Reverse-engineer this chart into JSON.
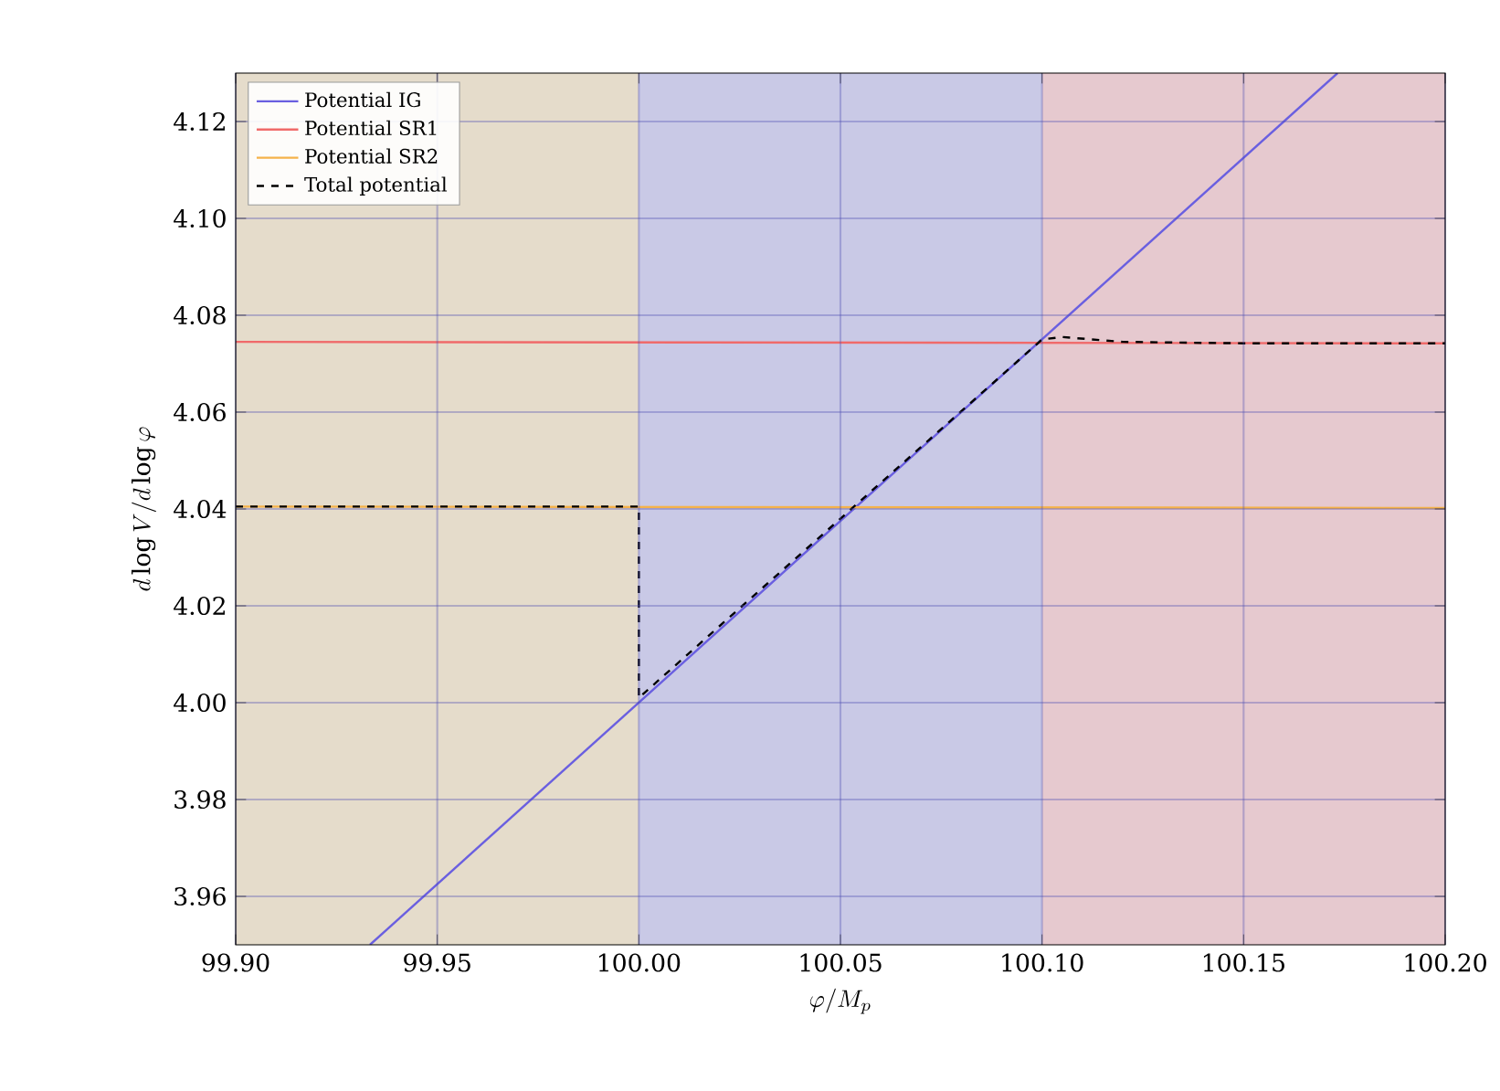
{
  "chart_data": {
    "type": "line",
    "xlabel": "\\varphi/M_p",
    "ylabel": "d\\log V/d\\log\\varphi",
    "xlim": [
      99.9,
      100.2
    ],
    "ylim": [
      3.95,
      4.13
    ],
    "xticks": [
      {
        "value": 99.9,
        "label": "99.90"
      },
      {
        "value": 99.95,
        "label": "99.95"
      },
      {
        "value": 100.0,
        "label": "100.00"
      },
      {
        "value": 100.05,
        "label": "100.05"
      },
      {
        "value": 100.1,
        "label": "100.10"
      },
      {
        "value": 100.15,
        "label": "100.15"
      },
      {
        "value": 100.2,
        "label": "100.20"
      }
    ],
    "yticks": [
      3.96,
      3.98,
      {
        "value": 4.0,
        "label": "4.00"
      },
      4.02,
      4.04,
      4.06,
      4.08,
      {
        "value": 4.1,
        "label": "4.10"
      },
      4.12
    ],
    "grid": true,
    "legend": "top left",
    "bands": [
      {
        "axis": "x",
        "from": 99.9,
        "to": 100.0,
        "color": "#e5dccb"
      },
      {
        "axis": "x",
        "from": 100.0,
        "to": 100.1,
        "color": "#c9c9e6"
      },
      {
        "axis": "x",
        "from": 100.1,
        "to": 100.2,
        "color": "#e6c9cf"
      }
    ],
    "series": [
      {
        "name": "Potential IG",
        "color": "#6a5fe0",
        "line_style": "solid",
        "x": [
          99.9333,
          100.1733
        ],
        "values": [
          3.95,
          4.13
        ]
      },
      {
        "name": "Potential SR1",
        "color": "#f06a6a",
        "line_style": "solid",
        "x": [
          99.9,
          100.2
        ],
        "values": [
          4.0745,
          4.0742
        ]
      },
      {
        "name": "Potential SR2",
        "color": "#f5b24a",
        "line_style": "solid",
        "x": [
          99.9,
          100.2
        ],
        "values": [
          4.0405,
          4.0402
        ]
      },
      {
        "name": "Total potential",
        "color": "#000000",
        "line_style": "dashed",
        "x": [
          99.9,
          100.0,
          100.0,
          100.05,
          100.1,
          100.105,
          100.12,
          100.15,
          100.2
        ],
        "values": [
          4.0405,
          4.0405,
          4.001,
          4.038,
          4.075,
          4.0755,
          4.0745,
          4.0742,
          4.0742
        ]
      }
    ]
  }
}
